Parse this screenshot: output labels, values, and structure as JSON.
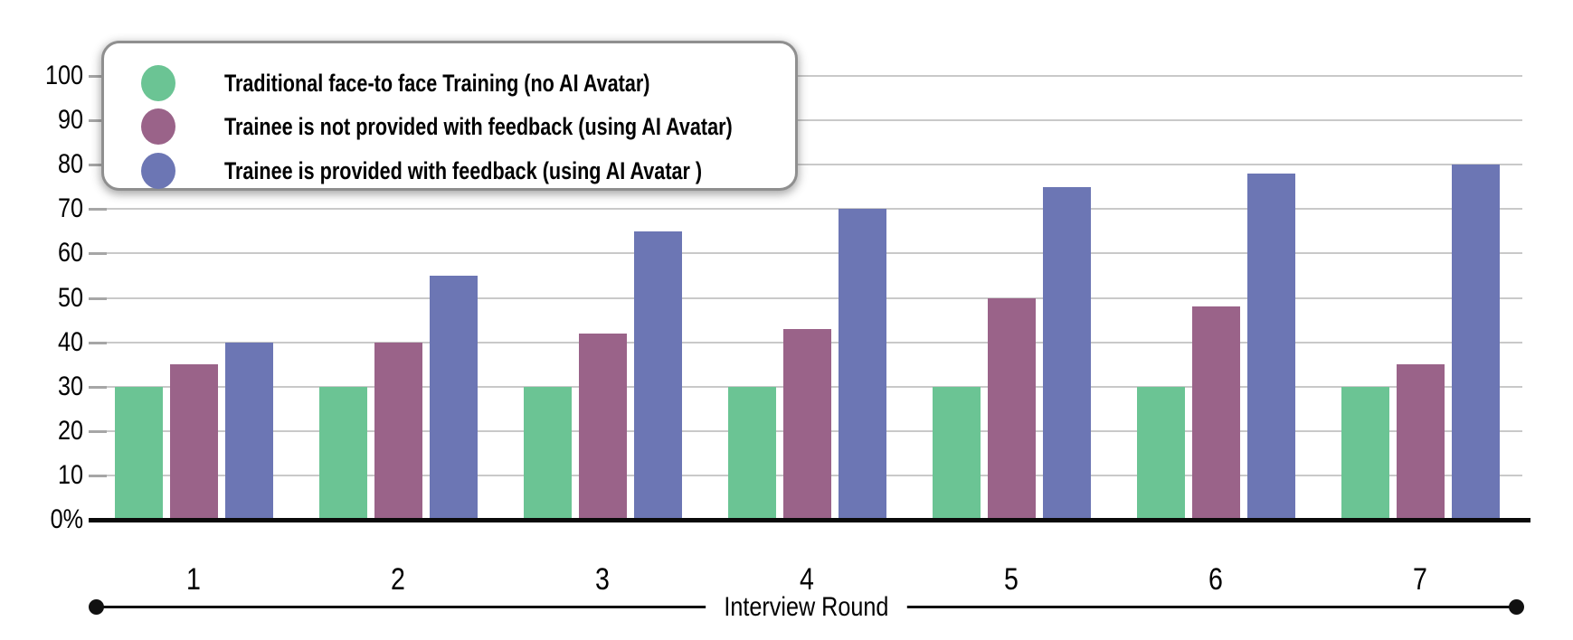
{
  "chart_data": {
    "type": "bar",
    "title": "",
    "xlabel": "Interview Round",
    "ylabel": "",
    "ylim": [
      0,
      100
    ],
    "yticks": [
      0,
      10,
      20,
      30,
      40,
      50,
      60,
      70,
      80,
      90,
      100
    ],
    "ytick_labels": [
      "0%",
      "10",
      "20",
      "30",
      "40",
      "50",
      "60",
      "70",
      "80",
      "90",
      "100"
    ],
    "grid": "horizontal",
    "legend_position": "top-left",
    "categories": [
      "1",
      "2",
      "3",
      "4",
      "5",
      "6",
      "7"
    ],
    "series": [
      {
        "name": "Traditional face-to face Training (no AI Avatar)",
        "color": "#6BC494",
        "values": [
          30,
          30,
          30,
          30,
          30,
          30,
          30
        ]
      },
      {
        "name": "Trainee is not provided with feedback (using AI Avatar)",
        "color": "#9A6389",
        "values": [
          35,
          40,
          42,
          43,
          50,
          48,
          35
        ]
      },
      {
        "name": "Trainee is provided with feedback (using AI Avatar )",
        "color": "#6C76B4",
        "values": [
          40,
          55,
          65,
          70,
          75,
          78,
          80
        ]
      }
    ]
  }
}
